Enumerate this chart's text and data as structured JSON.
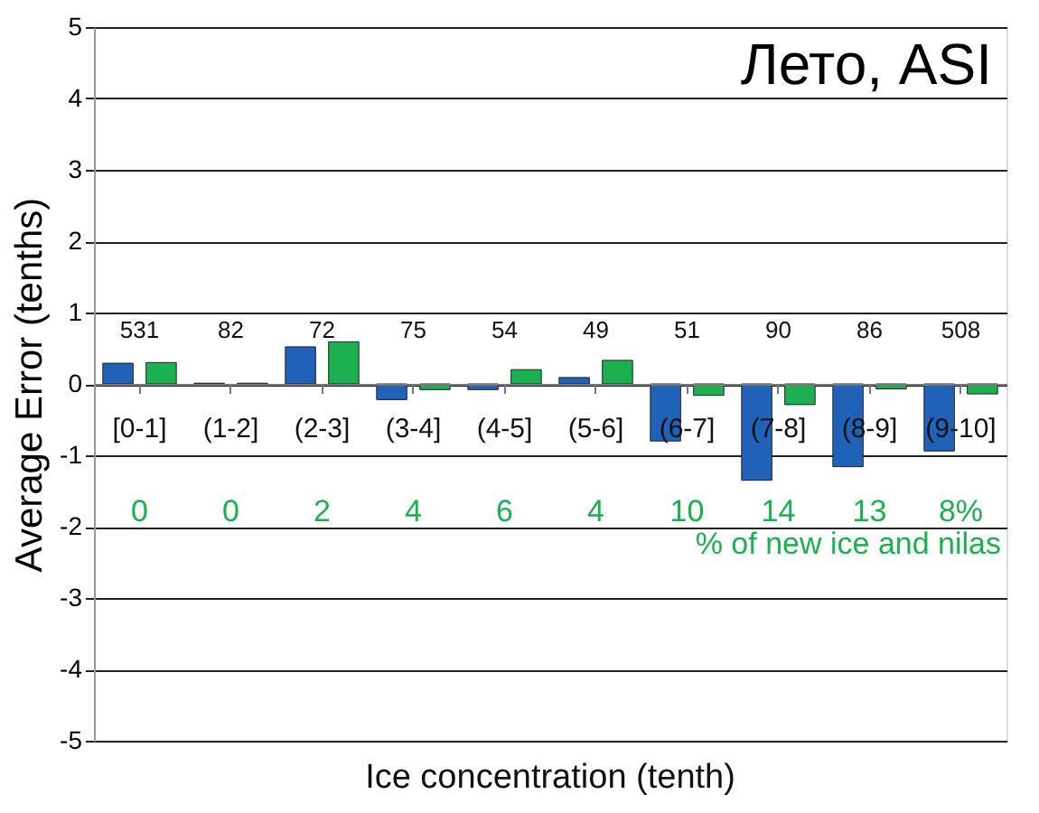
{
  "chart_data": {
    "type": "bar",
    "title": "Лето, ASI",
    "xlabel": "Ice concentration (tenth)",
    "ylabel": "Average Error (tenths)",
    "categories": [
      "[0-1]",
      "(1-2]",
      "(2-3]",
      "(3-4]",
      "(4-5]",
      "(5-6]",
      "(6-7]",
      "(7-8]",
      "(8-9]",
      "(9-10]"
    ],
    "series": [
      {
        "color": "#1f62b8",
        "values": [
          0.29,
          0.01,
          0.52,
          -0.22,
          -0.08,
          0.09,
          -0.8,
          -1.35,
          -1.16,
          -0.94
        ]
      },
      {
        "color": "#1cb050",
        "values": [
          0.3,
          0.01,
          0.59,
          -0.08,
          0.2,
          0.33,
          -0.16,
          -0.29,
          -0.07,
          -0.14
        ]
      }
    ],
    "ylim": [
      -5,
      5
    ],
    "yticks": [
      -5,
      -4,
      -3,
      -2,
      -1,
      0,
      1,
      2,
      3,
      4,
      5
    ],
    "grid": "y",
    "annotations": [
      "531",
      "82",
      "72",
      "75",
      "54",
      "49",
      "51",
      "90",
      "86",
      "508",
      "0",
      "0",
      "2",
      "4",
      "6",
      "4",
      "10",
      "14",
      "13",
      "8%",
      "% of new ice and nilas"
    ]
  }
}
